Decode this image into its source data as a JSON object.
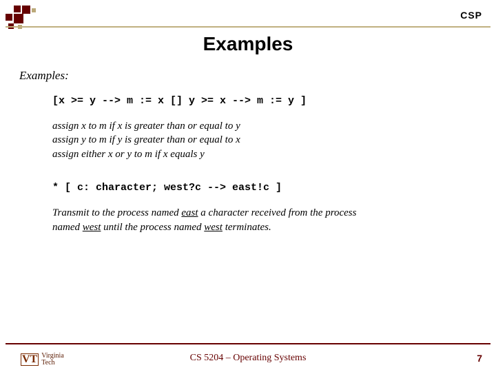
{
  "header": {
    "cornerLabel": "CSP",
    "title": "Examples"
  },
  "body": {
    "subheading": "Examples:",
    "code1": "[x >= y --> m := x [] y >= x --> m := y ]",
    "explain1_line1": "assign x to m if x is greater than or equal to y",
    "explain1_line2": "assign y to m if y is greater than or equal to x",
    "explain1_line3": "assign either x or y to m if x equals y",
    "code2": "* [ c: character; west?c --> east!c ]",
    "explain2_pre": "Transmit to the process named ",
    "explain2_u1": "east",
    "explain2_mid1": " a character received from the process named ",
    "explain2_u2": "west",
    "explain2_mid2": " until the process named ",
    "explain2_u3": "west",
    "explain2_post": " terminates."
  },
  "footer": {
    "logo_line1": "Virginia",
    "logo_line2": "Tech",
    "center": "CS 5204 – Operating Systems",
    "pageNumber": "7"
  },
  "colors": {
    "maroon": "#660000",
    "gold": "#c0b080"
  }
}
